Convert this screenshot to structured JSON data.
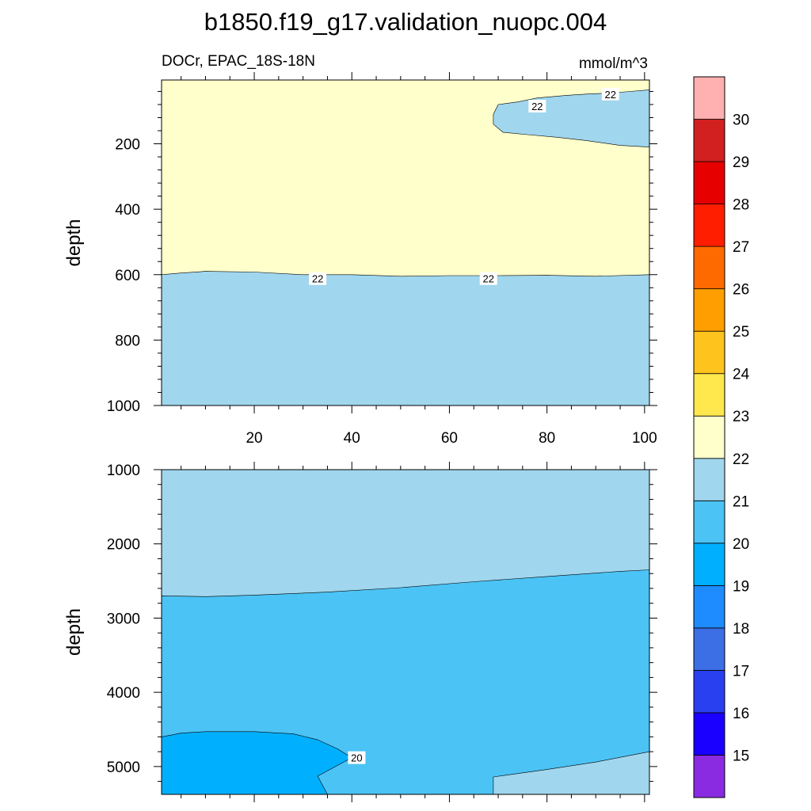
{
  "chart_data": {
    "type": "contour",
    "title": "b1850.f19_g17.validation_nuopc.004",
    "left_subtitle": "DOCr, EPAC_18S-18N",
    "units": "mmol/m^3",
    "x_axis": {
      "label": "",
      "range": [
        1,
        101
      ],
      "ticks": [
        20,
        40,
        60,
        80,
        100
      ],
      "tick_labels": [
        "20",
        "40",
        "60",
        "80",
        "100"
      ]
    },
    "panels": [
      {
        "name": "upper",
        "ylabel": "depth",
        "y_range": [
          5,
          1000
        ],
        "y_ticks": [
          200,
          400,
          600,
          800,
          1000
        ],
        "y_tick_labels": [
          "200",
          "400",
          "600",
          "800",
          "1000"
        ],
        "background_level": 22.5,
        "regions": [
          {
            "level": 21.5,
            "desc": "below 22 contour near 600 m",
            "boundary": [
              [
                1,
                600
              ],
              [
                5,
                595
              ],
              [
                10,
                590
              ],
              [
                20,
                592
              ],
              [
                30,
                600
              ],
              [
                40,
                600
              ],
              [
                50,
                605
              ],
              [
                60,
                603
              ],
              [
                70,
                603
              ],
              [
                80,
                602
              ],
              [
                90,
                605
              ],
              [
                101,
                600
              ],
              [
                101,
                1000
              ],
              [
                1,
                1000
              ]
            ]
          },
          {
            "level": 21.5,
            "desc": "upper tongue 22 contour",
            "boundary": [
              [
                70,
                80
              ],
              [
                74,
                72
              ],
              [
                78,
                60
              ],
              [
                84,
                52
              ],
              [
                88,
                48
              ],
              [
                93,
                45
              ],
              [
                97,
                40
              ],
              [
                101,
                35
              ],
              [
                101,
                210
              ],
              [
                95,
                205
              ],
              [
                88,
                190
              ],
              [
                82,
                180
              ],
              [
                76,
                172
              ],
              [
                71,
                165
              ],
              [
                69,
                140
              ],
              [
                69,
                110
              ]
            ]
          }
        ],
        "contour_labels": [
          {
            "value": "22",
            "x": 33,
            "y": 612
          },
          {
            "value": "22",
            "x": 68,
            "y": 612
          },
          {
            "value": "22",
            "x": 78,
            "y": 85
          },
          {
            "value": "22",
            "x": 93,
            "y": 48
          }
        ]
      },
      {
        "name": "lower",
        "ylabel": "depth",
        "y_range": [
          1000,
          5375
        ],
        "y_ticks": [
          1000,
          2000,
          3000,
          4000,
          5000
        ],
        "y_tick_labels": [
          "1000",
          "2000",
          "3000",
          "4000",
          "5000"
        ],
        "background_level": 21.5,
        "regions": [
          {
            "level": 20.5,
            "desc": "between 20 and 21",
            "boundary": [
              [
                1,
                2700
              ],
              [
                10,
                2710
              ],
              [
                20,
                2690
              ],
              [
                35,
                2650
              ],
              [
                50,
                2590
              ],
              [
                65,
                2510
              ],
              [
                80,
                2440
              ],
              [
                95,
                2370
              ],
              [
                101,
                2350
              ],
              [
                101,
                5375
              ],
              [
                1,
                5375
              ]
            ]
          },
          {
            "level": 19.5,
            "desc": "below 20 contour bottom-left",
            "boundary": [
              [
                1,
                4600
              ],
              [
                5,
                4550
              ],
              [
                10,
                4530
              ],
              [
                20,
                4530
              ],
              [
                28,
                4560
              ],
              [
                33,
                4640
              ],
              [
                37,
                4760
              ],
              [
                40,
                4880
              ],
              [
                33,
                5130
              ],
              [
                35,
                5375
              ],
              [
                1,
                5375
              ]
            ]
          },
          {
            "level": 21.5,
            "desc": "bottom-right warmer patch",
            "boundary": [
              [
                69,
                5140
              ],
              [
                80,
                5040
              ],
              [
                90,
                4940
              ],
              [
                101,
                4800
              ],
              [
                101,
                5375
              ],
              [
                69,
                5375
              ]
            ]
          }
        ],
        "contour_labels": [
          {
            "value": "20",
            "x": 41,
            "y": 4880
          }
        ]
      }
    ],
    "colorbar": {
      "levels": [
        "15",
        "16",
        "17",
        "18",
        "19",
        "20",
        "21",
        "22",
        "23",
        "24",
        "25",
        "26",
        "27",
        "28",
        "29",
        "30"
      ],
      "colors": [
        "#8a2be2",
        "#1a00ff",
        "#2840f0",
        "#3c6ee6",
        "#1e8cff",
        "#00b0ff",
        "#4bc3f5",
        "#a0d6ee",
        "#ffffcc",
        "#ffe84d",
        "#ffc31e",
        "#ff9e00",
        "#ff6a00",
        "#ff1e00",
        "#e60000",
        "#d22020",
        "#ffb0b0"
      ]
    }
  }
}
